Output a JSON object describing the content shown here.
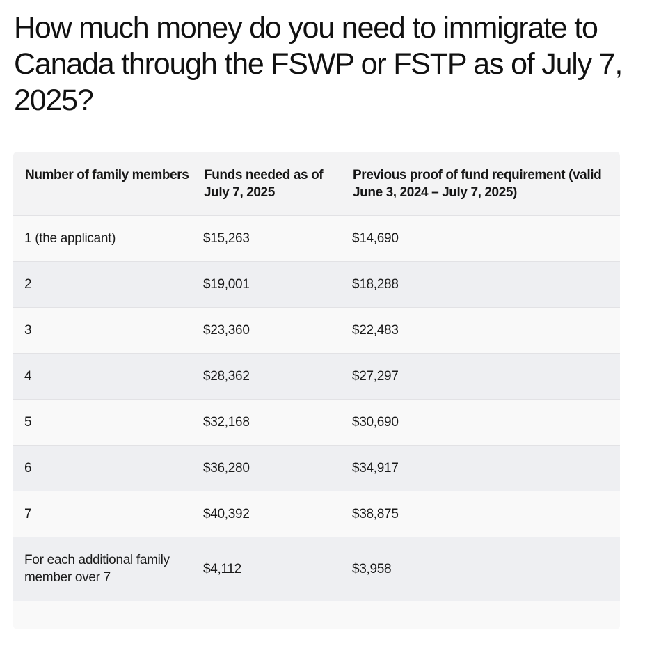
{
  "title": "How much money do you need to immigrate to Canada through the FSWP or FSTP as of July 7, 2025?",
  "table": {
    "headers": [
      "Number of family members",
      "Funds needed as of July 7, 2025",
      "Previous proof of fund requirement (valid June 3, 2024 – July 7, 2025)"
    ],
    "rows": [
      [
        "1 (the applicant)",
        "$15,263",
        "$14,690"
      ],
      [
        "2",
        "$19,001",
        "$18,288"
      ],
      [
        "3",
        "$23,360",
        "$22,483"
      ],
      [
        "4",
        "$28,362",
        "$27,297"
      ],
      [
        "5",
        "$32,168",
        "$30,690"
      ],
      [
        "6",
        "$36,280",
        "$34,917"
      ],
      [
        "7",
        "$40,392",
        "$38,875"
      ],
      [
        "For each additional family member over 7",
        "$4,112",
        "$3,958"
      ]
    ]
  }
}
